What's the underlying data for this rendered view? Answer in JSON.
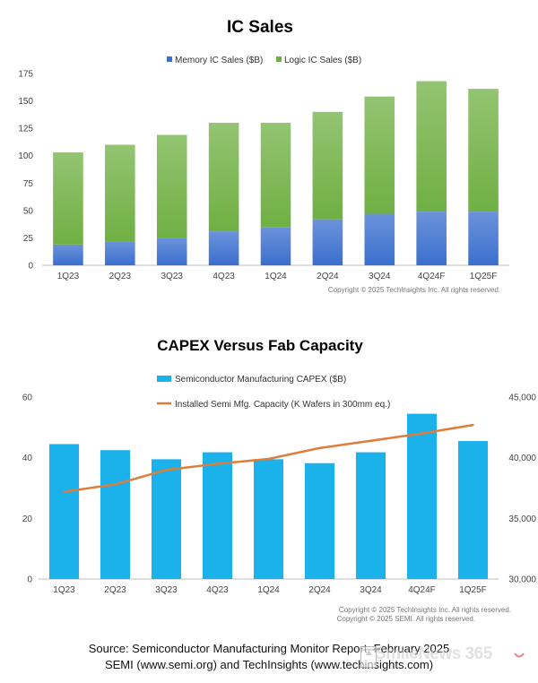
{
  "chart_data": [
    {
      "type": "bar",
      "stacked": true,
      "title": "IC Sales",
      "categories": [
        "1Q23",
        "2Q23",
        "3Q23",
        "4Q23",
        "1Q24",
        "2Q24",
        "3Q24",
        "4Q24F",
        "1Q25F"
      ],
      "series": [
        {
          "name": "Memory IC Sales ($B)",
          "color": "#3b6fce",
          "values": [
            19,
            22,
            25,
            31,
            35,
            42,
            47,
            49,
            49
          ]
        },
        {
          "name": "Logic IC Sales ($B)",
          "color": "#70b043",
          "values": [
            84,
            88,
            94,
            99,
            95,
            98,
            107,
            119,
            112
          ]
        }
      ],
      "ylim": [
        0,
        175
      ],
      "yticks": [
        0,
        25,
        50,
        75,
        100,
        125,
        150,
        175
      ],
      "grid": false,
      "legend": "top",
      "copyright": [
        "Copyright © 2025 TechInsights Inc.  All rights reserved."
      ]
    },
    {
      "type": "bar+line",
      "title": "CAPEX Versus Fab Capacity",
      "categories": [
        "1Q23",
        "2Q23",
        "3Q23",
        "4Q23",
        "1Q24",
        "2Q24",
        "3Q24",
        "4Q24F",
        "1Q25F"
      ],
      "series": [
        {
          "name": "Semiconductor Manufacturing CAPEX ($B)",
          "type": "bar",
          "axis": "left",
          "color": "#1bb1ea",
          "values": [
            44.5,
            42.5,
            39.5,
            41.8,
            39.5,
            38.2,
            41.8,
            54.5,
            45.5
          ]
        },
        {
          "name": "Installed Semi Mfg. Capacity (K Wafers in 300mm eq.)",
          "type": "line",
          "axis": "right",
          "color": "#e07b39",
          "values": [
            37200,
            37800,
            39000,
            39500,
            39900,
            40800,
            41400,
            42000,
            42700
          ]
        }
      ],
      "ylim_left": [
        0,
        60
      ],
      "yticks_left": [
        0,
        20,
        40,
        60
      ],
      "ylim_right": [
        30000,
        45000
      ],
      "yticks_right": [
        "30,000",
        "35,000",
        "40,000",
        "45,000"
      ],
      "grid": false,
      "legend": "top",
      "copyright": [
        "Copyright © 2025 TechInsights Inc.  All rights reserved.",
        "Copyright © 2025 SEMI.  All rights reserved."
      ]
    }
  ],
  "source": {
    "line1": "Source: Semiconductor Manufacturing Monitor Report, February 2025",
    "line2": "SEMI (www.semi.org) and TechInsights (www.techinsights.com)"
  },
  "watermark": {
    "logo_text": "SmileNews 365",
    "text": "SmileNews 365"
  }
}
